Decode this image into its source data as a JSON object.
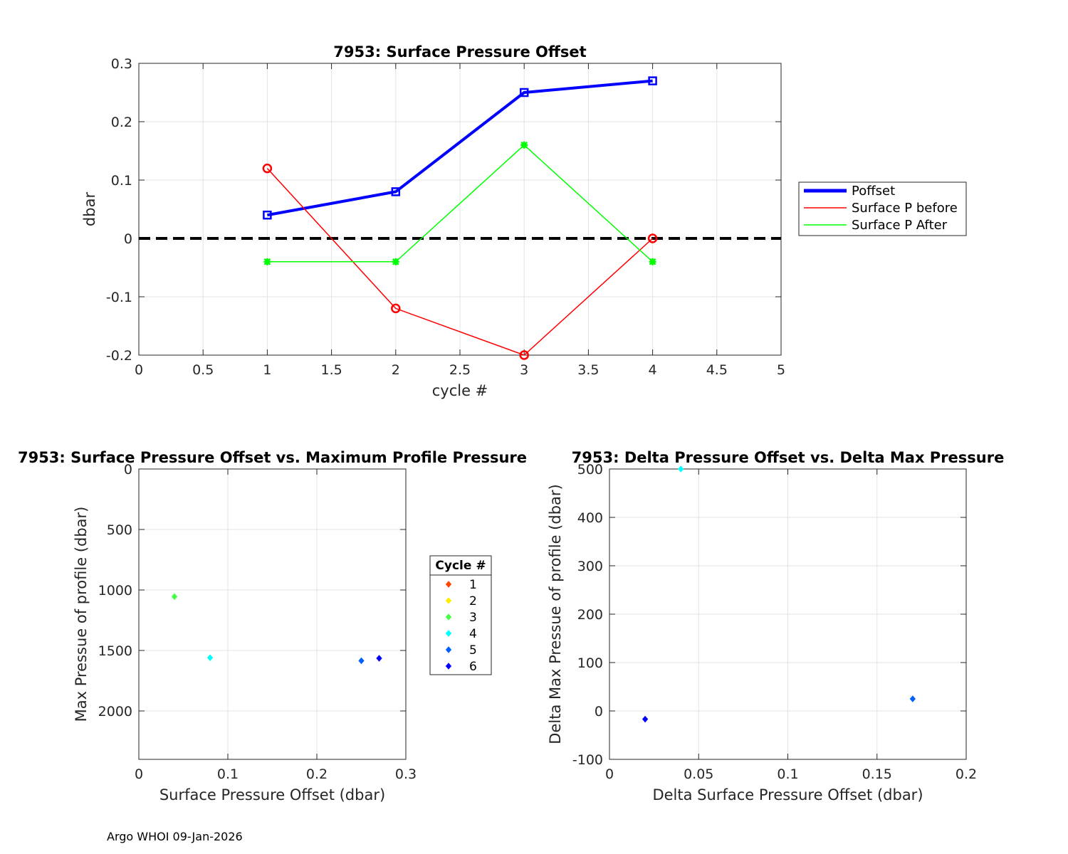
{
  "footer": "Argo WHOI 09-Jan-2026",
  "chart_data": [
    {
      "type": "line",
      "title": "7953: Surface Pressure Offset",
      "xlabel": "cycle #",
      "ylabel": "dbar",
      "xlim": [
        0,
        5
      ],
      "ylim": [
        -0.2,
        0.3
      ],
      "xticks": [
        0,
        0.5,
        1,
        1.5,
        2,
        2.5,
        3,
        3.5,
        4,
        4.5,
        5
      ],
      "xticklabels": [
        "0",
        "0.5",
        "1",
        "1.5",
        "2",
        "2.5",
        "3",
        "3.5",
        "4",
        "4.5",
        "5"
      ],
      "yticks": [
        -0.2,
        -0.1,
        0,
        0.1,
        0.2,
        0.3
      ],
      "yticklabels": [
        "-0.2",
        "-0.1",
        "0",
        "0.1",
        "0.2",
        "0.3"
      ],
      "grid": true,
      "reference_line": {
        "y": 0,
        "style": "dashed",
        "color": "#000000"
      },
      "legend_position": "outside-right",
      "series": [
        {
          "name": "Poffset",
          "color": "#0000ff",
          "marker": "square",
          "x": [
            1,
            2,
            3,
            4
          ],
          "y": [
            0.04,
            0.08,
            0.25,
            0.27
          ]
        },
        {
          "name": "Surface P before",
          "color": "#ff0000",
          "marker": "circle",
          "x": [
            1,
            2,
            3,
            4
          ],
          "y": [
            0.12,
            -0.12,
            -0.2,
            0
          ]
        },
        {
          "name": "Surface P After",
          "color": "#00ff00",
          "marker": "asterisk",
          "x": [
            1,
            2,
            3,
            4
          ],
          "y": [
            -0.04,
            -0.04,
            0.16,
            -0.04
          ]
        }
      ]
    },
    {
      "type": "scatter",
      "title": "7953: Surface Pressure Offset vs. Maximum Profile Pressure",
      "xlabel": "Surface Pressure Offset (dbar)",
      "ylabel": "Max Pressue of profile (dbar)",
      "xlim": [
        0,
        0.3
      ],
      "ylim": [
        0,
        2400
      ],
      "y_reversed": true,
      "xticks": [
        0,
        0.1,
        0.2,
        0.3
      ],
      "xticklabels": [
        "0",
        "0.1",
        "0.2",
        "0.3"
      ],
      "yticks": [
        0,
        500,
        1000,
        1500,
        2000
      ],
      "yticklabels": [
        "0",
        "500",
        "1000",
        "1500",
        "2000"
      ],
      "grid": true,
      "legend_title": "Cycle #",
      "legend_entries": [
        {
          "label": "1",
          "color": "#ff4400"
        },
        {
          "label": "2",
          "color": "#ffee00"
        },
        {
          "label": "3",
          "color": "#44ff44"
        },
        {
          "label": "4",
          "color": "#00ffff"
        },
        {
          "label": "5",
          "color": "#0060ff"
        },
        {
          "label": "6",
          "color": "#0000ff"
        }
      ],
      "points": [
        {
          "x": 0.04,
          "y": 1055,
          "color": "#44ff44"
        },
        {
          "x": 0.08,
          "y": 1560,
          "color": "#00ffff"
        },
        {
          "x": 0.25,
          "y": 1585,
          "color": "#0060ff"
        },
        {
          "x": 0.27,
          "y": 1565,
          "color": "#0000ff"
        }
      ]
    },
    {
      "type": "scatter",
      "title": "7953: Delta Pressure Offset vs. Delta Max Pressure",
      "xlabel": "Delta Surface Pressure Offset (dbar)",
      "ylabel": "Delta Max Pressue of profile (dbar)",
      "xlim": [
        0,
        0.2
      ],
      "ylim": [
        -100,
        500
      ],
      "xticks": [
        0,
        0.05,
        0.1,
        0.15,
        0.2
      ],
      "xticklabels": [
        "0",
        "0.05",
        "0.1",
        "0.15",
        "0.2"
      ],
      "yticks": [
        -100,
        0,
        100,
        200,
        300,
        400,
        500
      ],
      "yticklabels": [
        "-100",
        "0",
        "100",
        "200",
        "300",
        "400",
        "500"
      ],
      "grid": true,
      "points": [
        {
          "x": 0.04,
          "y": 500,
          "color": "#00ffff"
        },
        {
          "x": 0.17,
          "y": 25,
          "color": "#0060ff"
        },
        {
          "x": 0.02,
          "y": -17,
          "color": "#0000ff"
        }
      ]
    }
  ]
}
